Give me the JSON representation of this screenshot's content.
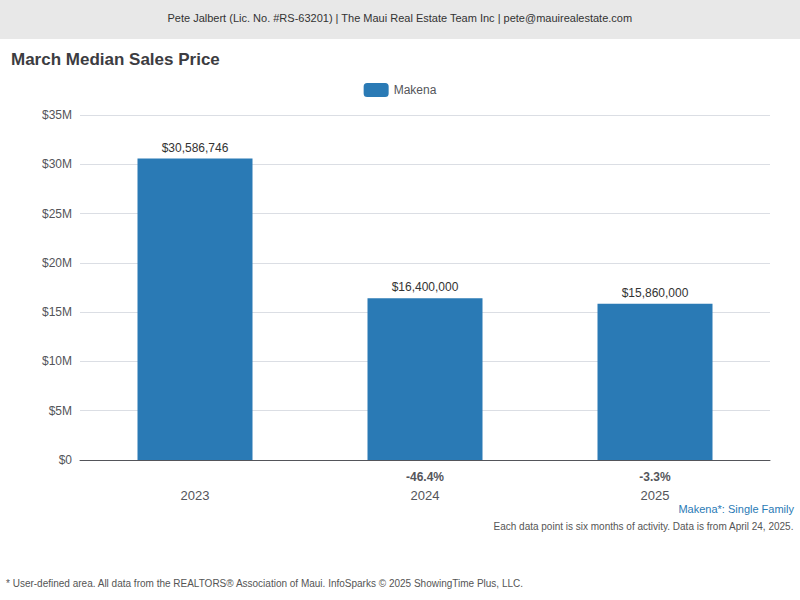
{
  "chart_data": {
    "type": "bar",
    "title": "March Median Sales Price",
    "header": "Pete Jalbert (Lic. No. #RS-63201) | The Maui Real Estate Team Inc | pete@mauirealestate.com",
    "categories": [
      "2023",
      "2024",
      "2025"
    ],
    "series": [
      {
        "name": "Makena",
        "color": "#2a7ab5",
        "values": [
          30586746,
          16400000,
          15860000
        ],
        "value_labels": [
          "$30,586,746",
          "$16,400,000",
          "$15,860,000"
        ]
      }
    ],
    "change_labels": [
      null,
      "-46.4%",
      "-3.3%"
    ],
    "notes": [
      "Makena*: Single Family",
      "Each data point is six months of activity. Data is from April 24, 2025.",
      "* User-defined area. All data from the REALTORS® Association of Maui. InfoSparks © 2025 ShowingTime Plus, LLC."
    ],
    "ylim": [
      0,
      35000000
    ],
    "yticks": [
      {
        "value": 0,
        "label": "$0"
      },
      {
        "value": 5000000,
        "label": "$5M"
      },
      {
        "value": 10000000,
        "label": "$10M"
      },
      {
        "value": 15000000,
        "label": "$15M"
      },
      {
        "value": 20000000,
        "label": "$20M"
      },
      {
        "value": 25000000,
        "label": "$25M"
      },
      {
        "value": 30000000,
        "label": "$30M"
      },
      {
        "value": 35000000,
        "label": "$35M"
      }
    ],
    "grid": true,
    "legend": "top",
    "data_labels": true
  }
}
